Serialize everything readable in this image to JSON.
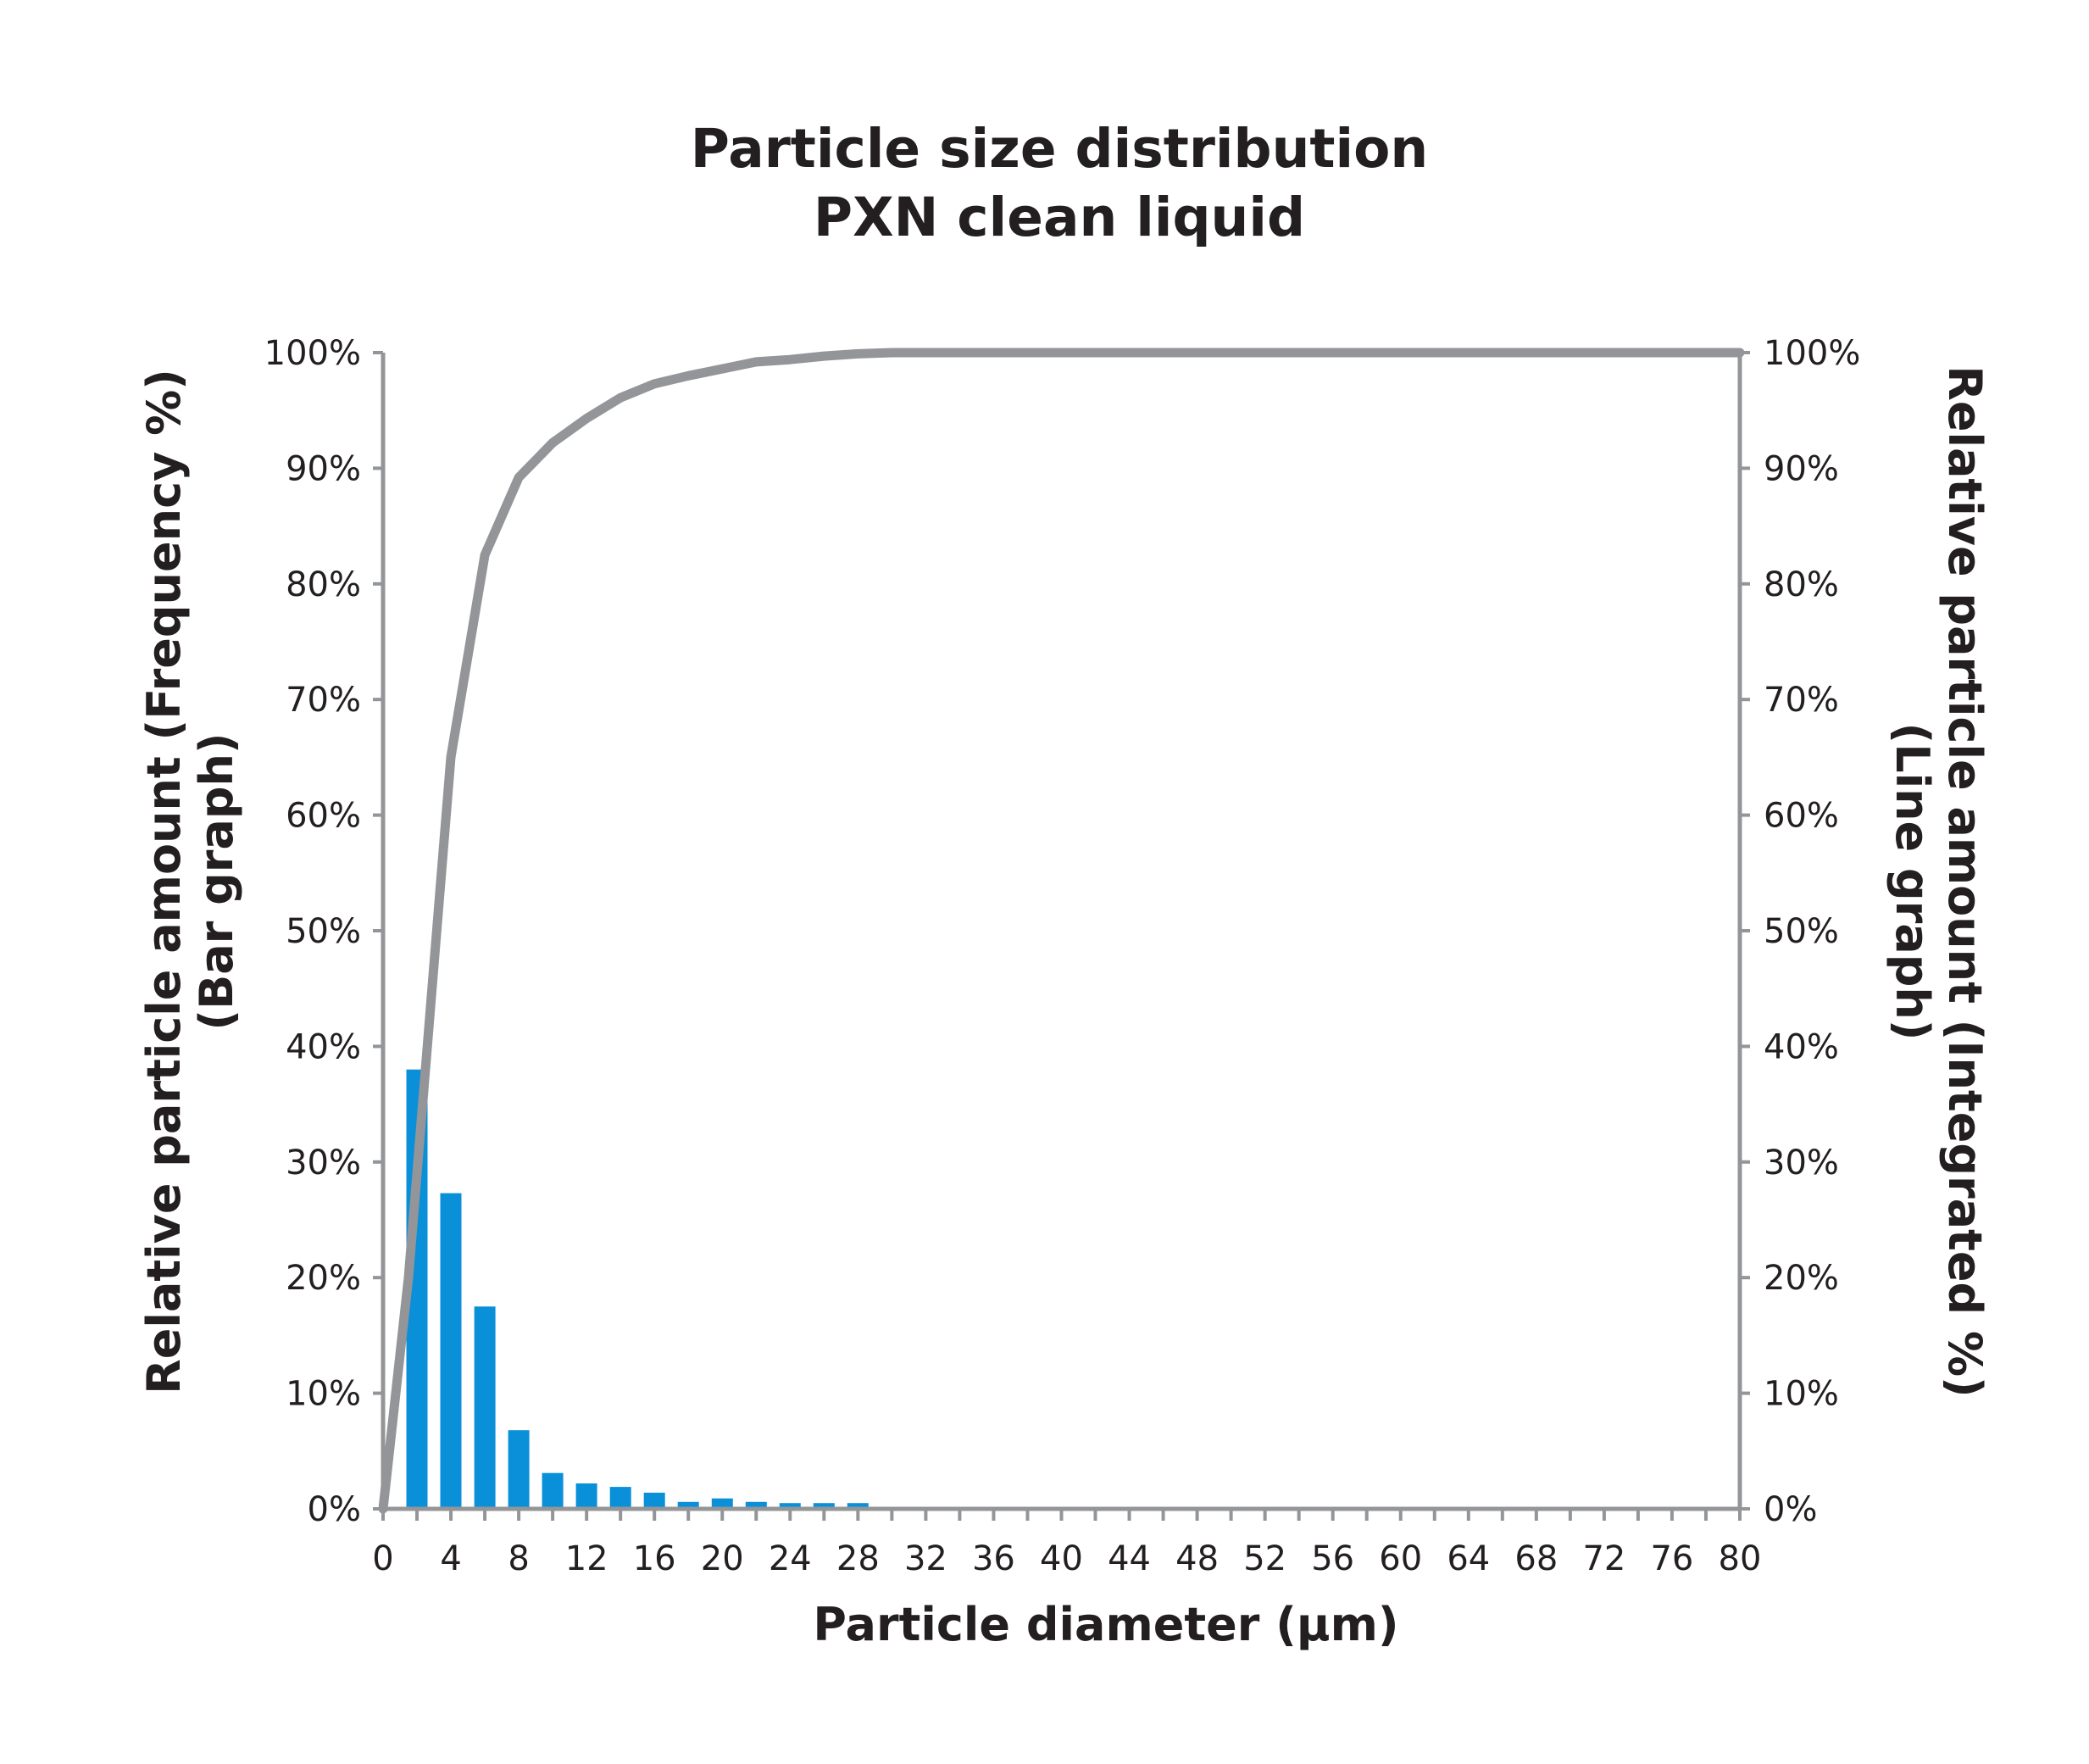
{
  "chart_data": {
    "type": "bar",
    "title": "Particle size distribution",
    "subtitle": "PXN clean liquid",
    "xlabel": "Particle diameter (µm)",
    "ylabel_left": "Relative particle amount (Frequency %)",
    "ylabel_left_sub": "(Bar graph)",
    "ylabel_right": "Relative particle amount (Integrated %)",
    "ylabel_right_sub": "(Line graph)",
    "xlim": [
      0,
      80
    ],
    "ylim": [
      0,
      100
    ],
    "x_ticks": [
      0,
      4,
      8,
      12,
      16,
      20,
      24,
      28,
      32,
      36,
      40,
      44,
      48,
      52,
      56,
      60,
      64,
      68,
      72,
      76,
      80
    ],
    "y_tick_labels": [
      "0%",
      "10%",
      "20%",
      "30%",
      "40%",
      "50%",
      "60%",
      "70%",
      "80%",
      "90%",
      "100%"
    ],
    "y_ticks": [
      0,
      10,
      20,
      30,
      40,
      50,
      60,
      70,
      80,
      90,
      100
    ],
    "grid": false,
    "series": [
      {
        "type": "bar",
        "axis": "left",
        "color": "#0a8fd9",
        "x": [
          2,
          4,
          6,
          8,
          10,
          12,
          14,
          16,
          18,
          20,
          22,
          24,
          26,
          28
        ],
        "values": [
          38,
          27.3,
          17.5,
          6.8,
          3.1,
          2.2,
          1.9,
          1.4,
          0.6,
          0.9,
          0.6,
          0.5,
          0.5,
          0.5
        ]
      },
      {
        "type": "line",
        "axis": "right",
        "color": "#939598",
        "x": [
          0,
          1.5,
          2.5,
          4,
          6,
          8,
          10,
          12,
          14,
          16,
          18,
          20,
          22,
          24,
          26,
          28,
          30,
          40,
          50,
          60,
          70,
          80
        ],
        "values": [
          0,
          20,
          38,
          65,
          82.5,
          89.2,
          92.2,
          94.3,
          96.1,
          97.3,
          98,
          98.6,
          99.2,
          99.4,
          99.7,
          99.9,
          100,
          100,
          100,
          100,
          100,
          100
        ]
      }
    ]
  }
}
